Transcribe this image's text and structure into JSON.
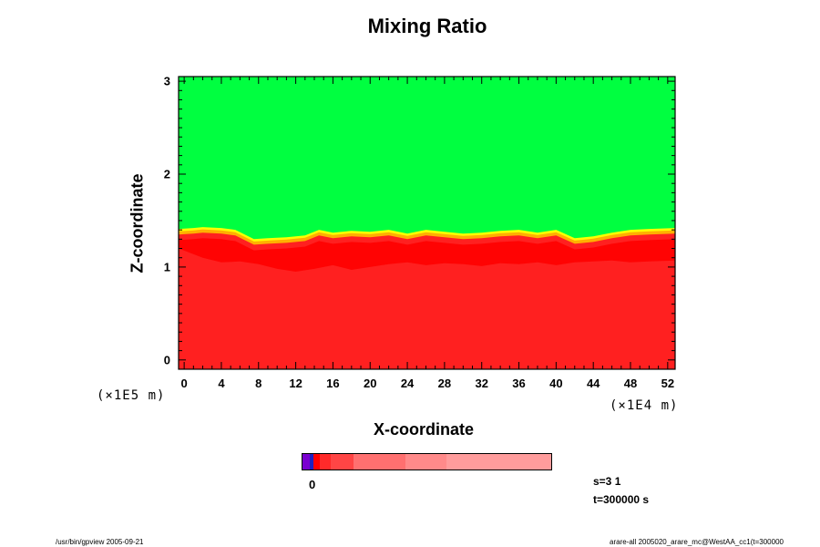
{
  "chart_data": {
    "type": "heatmap",
    "title": "Mixing Ratio",
    "xlabel": "X-coordinate",
    "ylabel": "Z-coordinate",
    "x_unit": "(×1E4 m)",
    "y_unit": "(×1E5 m)",
    "xlim": [
      -0.6,
      52.8
    ],
    "ylim": [
      -0.1,
      3.05
    ],
    "x_ticks": [
      "0",
      "4",
      "8",
      "12",
      "16",
      "20",
      "24",
      "28",
      "32",
      "36",
      "40",
      "44",
      "48",
      "52"
    ],
    "y_ticks": [
      "0",
      "1",
      "2",
      "3"
    ],
    "grid": false,
    "regions": [
      {
        "label": "upper layer",
        "color": "#00ff40"
      },
      {
        "label": "transition",
        "color": "#ffff00"
      },
      {
        "label": "lower layer",
        "color": "#ff2020"
      }
    ],
    "interface_height": [
      [
        -0.6,
        1.37
      ],
      [
        1.0,
        1.38
      ],
      [
        2.0,
        1.39
      ],
      [
        4.0,
        1.38
      ],
      [
        5.5,
        1.36
      ],
      [
        7.5,
        1.26
      ],
      [
        9.0,
        1.27
      ],
      [
        11.0,
        1.28
      ],
      [
        13.0,
        1.3
      ],
      [
        14.5,
        1.36
      ],
      [
        16.0,
        1.33
      ],
      [
        18.0,
        1.35
      ],
      [
        20.0,
        1.34
      ],
      [
        22.0,
        1.36
      ],
      [
        24.0,
        1.32
      ],
      [
        26.0,
        1.36
      ],
      [
        28.0,
        1.34
      ],
      [
        30.0,
        1.32
      ],
      [
        32.0,
        1.33
      ],
      [
        34.0,
        1.35
      ],
      [
        36.0,
        1.36
      ],
      [
        38.0,
        1.33
      ],
      [
        40.0,
        1.36
      ],
      [
        42.0,
        1.27
      ],
      [
        44.0,
        1.29
      ],
      [
        46.0,
        1.33
      ],
      [
        48.0,
        1.36
      ],
      [
        50.0,
        1.37
      ],
      [
        52.8,
        1.38
      ]
    ],
    "lower_boundary": [
      [
        -0.6,
        1.2
      ],
      [
        2.0,
        1.1
      ],
      [
        4.0,
        1.05
      ],
      [
        6.0,
        1.06
      ],
      [
        8.0,
        1.03
      ],
      [
        10.0,
        0.98
      ],
      [
        12.0,
        0.95
      ],
      [
        14.0,
        0.98
      ],
      [
        16.0,
        1.02
      ],
      [
        18.0,
        0.97
      ],
      [
        20.0,
        1.0
      ],
      [
        22.0,
        1.03
      ],
      [
        24.0,
        1.05
      ],
      [
        26.0,
        1.02
      ],
      [
        28.0,
        1.04
      ],
      [
        30.0,
        1.03
      ],
      [
        32.0,
        1.01
      ],
      [
        34.0,
        1.04
      ],
      [
        36.0,
        1.03
      ],
      [
        38.0,
        1.05
      ],
      [
        40.0,
        1.02
      ],
      [
        42.0,
        1.05
      ],
      [
        44.0,
        1.06
      ],
      [
        46.0,
        1.07
      ],
      [
        48.0,
        1.05
      ],
      [
        50.0,
        1.06
      ],
      [
        52.8,
        1.07
      ]
    ],
    "colorbar": {
      "tick_label": "0",
      "colors": [
        "#7a00d0",
        "#2020c0",
        "#ff0000",
        "#ff2a2a",
        "#ff4545",
        "#ff7070",
        "#ff8a8a",
        "#ff9c9c"
      ],
      "widths": [
        9,
        5,
        8,
        13,
        29,
        65,
        52,
        131
      ]
    }
  },
  "info": {
    "s_label": "s=3 1",
    "t_label": "t=300000 s"
  },
  "footer": {
    "left": "/usr/bin/gpview 2005-09-21",
    "right": "arare-all 2005020_arare_mc@WestAA_cc1(t=300000"
  }
}
